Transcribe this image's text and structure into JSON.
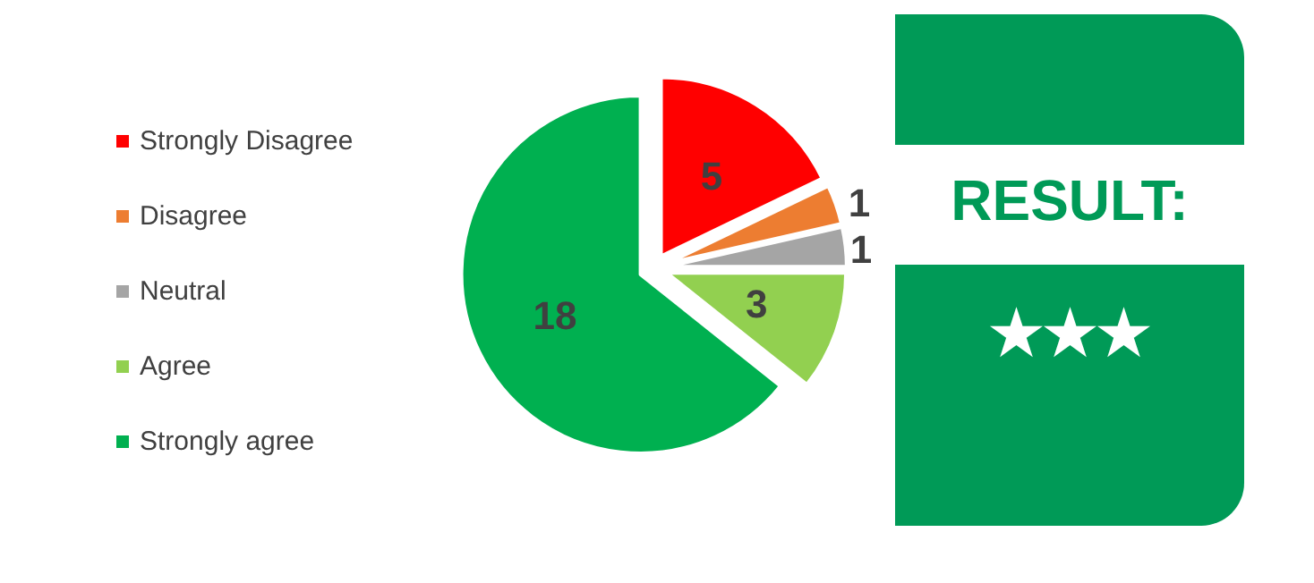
{
  "chart_data": [
    {
      "type": "pie",
      "categories": [
        "Strongly Disagree",
        "Disagree",
        "Neutral",
        "Agree",
        "Strongly agree"
      ],
      "values": [
        5,
        1,
        1,
        3,
        18
      ],
      "colors": [
        "#ff0000",
        "#ed7d31",
        "#a5a5a5",
        "#92d050",
        "#00b050"
      ],
      "data_labels": true,
      "legend": "left"
    },
    {
      "type": "other",
      "annotations": [
        "RESULT:",
        "★★★"
      ]
    }
  ]
}
